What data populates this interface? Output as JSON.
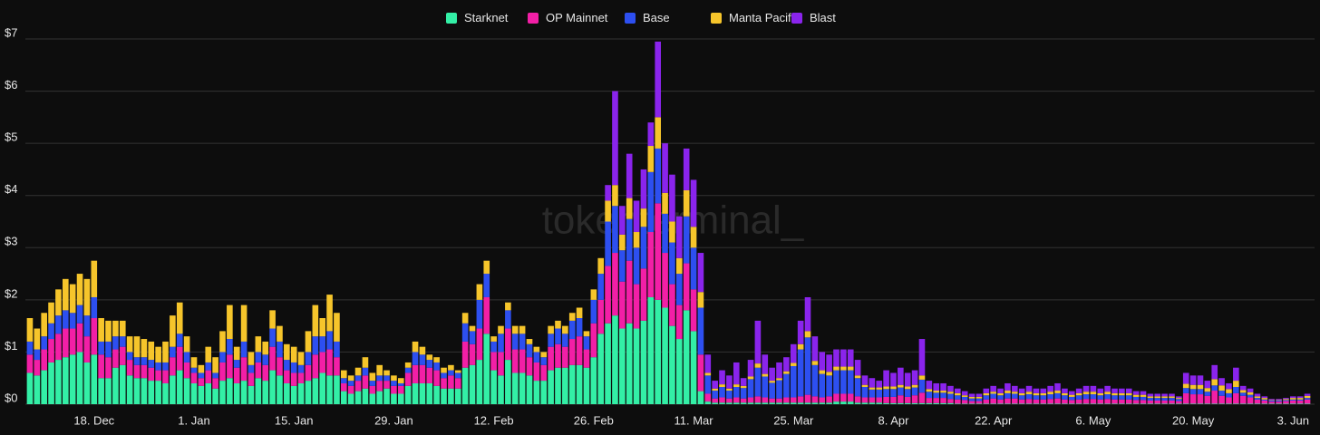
{
  "chart_data": {
    "type": "stacked_bar",
    "watermark": "tokenterminal_",
    "categories": [
      null,
      null,
      null,
      null,
      null,
      null,
      null,
      null,
      null,
      "18. Dec",
      null,
      null,
      null,
      null,
      null,
      null,
      null,
      null,
      null,
      null,
      null,
      null,
      null,
      "1. Jan",
      null,
      null,
      null,
      null,
      null,
      null,
      null,
      null,
      null,
      null,
      null,
      null,
      null,
      "15. Jan",
      null,
      null,
      null,
      null,
      null,
      null,
      null,
      null,
      null,
      null,
      null,
      null,
      null,
      "29. Jan",
      null,
      null,
      null,
      null,
      null,
      null,
      null,
      null,
      null,
      null,
      null,
      null,
      null,
      "12. Feb",
      null,
      null,
      null,
      null,
      null,
      null,
      null,
      null,
      null,
      null,
      null,
      null,
      null,
      "26. Feb",
      null,
      null,
      null,
      null,
      null,
      null,
      null,
      null,
      null,
      null,
      null,
      null,
      null,
      "11. Mar",
      null,
      null,
      null,
      null,
      null,
      null,
      null,
      null,
      null,
      null,
      null,
      null,
      null,
      "25. Mar",
      null,
      null,
      null,
      null,
      null,
      null,
      null,
      null,
      null,
      null,
      null,
      null,
      null,
      "8. Apr",
      null,
      null,
      null,
      null,
      null,
      null,
      null,
      null,
      null,
      null,
      null,
      null,
      null,
      "22. Apr",
      null,
      null,
      null,
      null,
      null,
      null,
      null,
      null,
      null,
      null,
      null,
      null,
      null,
      "6. May",
      null,
      null,
      null,
      null,
      null,
      null,
      null,
      null,
      null,
      null,
      null,
      null,
      null,
      "20. May",
      null,
      null,
      null,
      null,
      null,
      null,
      null,
      null,
      null,
      null,
      null,
      null,
      null,
      "3. Jun",
      null,
      null
    ],
    "series": [
      {
        "name": "Starknet",
        "color": "#33efa6",
        "values": [
          0.6,
          0.55,
          0.65,
          0.8,
          0.85,
          0.9,
          0.95,
          1.0,
          0.8,
          0.95,
          0.5,
          0.5,
          0.7,
          0.75,
          0.55,
          0.5,
          0.5,
          0.45,
          0.45,
          0.4,
          0.55,
          0.65,
          0.5,
          0.4,
          0.35,
          0.4,
          0.3,
          0.45,
          0.5,
          0.4,
          0.45,
          0.35,
          0.5,
          0.45,
          0.65,
          0.55,
          0.4,
          0.35,
          0.4,
          0.45,
          0.5,
          0.6,
          0.55,
          0.55,
          0.25,
          0.2,
          0.25,
          0.3,
          0.2,
          0.25,
          0.3,
          0.2,
          0.2,
          0.35,
          0.4,
          0.4,
          0.4,
          0.35,
          0.3,
          0.3,
          0.3,
          0.7,
          0.75,
          0.85,
          1.35,
          0.65,
          0.55,
          0.85,
          0.6,
          0.6,
          0.55,
          0.45,
          0.45,
          0.65,
          0.7,
          0.7,
          0.75,
          0.75,
          0.7,
          0.9,
          1.35,
          1.55,
          1.7,
          1.45,
          1.55,
          1.45,
          1.6,
          2.05,
          2.0,
          1.85,
          1.5,
          1.25,
          1.8,
          1.4,
          0.25,
          0.05,
          0.03,
          0.03,
          0.03,
          0.03,
          0.03,
          0.03,
          0.03,
          0.03,
          0.03,
          0.03,
          0.03,
          0.03,
          0.03,
          0.03,
          0.03,
          0.03,
          0.03,
          0.05,
          0.05,
          0.05,
          0.03,
          0.03,
          0.03,
          0.03,
          0.02,
          0.02,
          0.02,
          0.02,
          0.02,
          0.02,
          0.02,
          0.02,
          0.02,
          0.02,
          0.01,
          0.01,
          0.01,
          0.01,
          0.01,
          0.01,
          0.01,
          0.01,
          0.01,
          0.01,
          0.01,
          0.01,
          0.01,
          0.01,
          0.01,
          0.01,
          0.01,
          0.01,
          0.01,
          0.01,
          0.01,
          0.01,
          0.01,
          0.01,
          0.01,
          0.01,
          0.01,
          0.01,
          0.01,
          0.01,
          0.01,
          0.01,
          0.01,
          0.01,
          0.01,
          0.01,
          0.01,
          0.01,
          0.01,
          0.01,
          0.01,
          0.01,
          0.01,
          0.01,
          0.01,
          0.01,
          0.01,
          0.01,
          0.01,
          0.01
        ]
      },
      {
        "name": "OP Mainnet",
        "color": "#f21fa6",
        "values": [
          0.35,
          0.3,
          0.4,
          0.45,
          0.5,
          0.55,
          0.5,
          0.55,
          0.5,
          0.7,
          0.45,
          0.4,
          0.35,
          0.35,
          0.3,
          0.25,
          0.25,
          0.25,
          0.2,
          0.25,
          0.35,
          0.45,
          0.3,
          0.2,
          0.15,
          0.25,
          0.2,
          0.35,
          0.45,
          0.3,
          0.45,
          0.25,
          0.3,
          0.3,
          0.45,
          0.35,
          0.25,
          0.25,
          0.2,
          0.3,
          0.45,
          0.4,
          0.5,
          0.35,
          0.15,
          0.15,
          0.2,
          0.25,
          0.15,
          0.2,
          0.15,
          0.15,
          0.15,
          0.25,
          0.35,
          0.35,
          0.3,
          0.3,
          0.2,
          0.25,
          0.2,
          0.5,
          0.4,
          0.6,
          0.7,
          0.35,
          0.45,
          0.6,
          0.45,
          0.45,
          0.35,
          0.35,
          0.3,
          0.45,
          0.45,
          0.4,
          0.5,
          0.55,
          0.35,
          0.65,
          0.65,
          1.1,
          1.2,
          0.9,
          1.2,
          0.85,
          1.0,
          1.25,
          1.85,
          1.05,
          0.8,
          0.65,
          0.9,
          0.8,
          0.7,
          0.15,
          0.08,
          0.1,
          0.08,
          0.1,
          0.08,
          0.1,
          0.12,
          0.1,
          0.08,
          0.08,
          0.1,
          0.1,
          0.12,
          0.15,
          0.12,
          0.1,
          0.12,
          0.15,
          0.15,
          0.15,
          0.12,
          0.1,
          0.1,
          0.1,
          0.12,
          0.12,
          0.15,
          0.12,
          0.15,
          0.2,
          0.1,
          0.1,
          0.1,
          0.08,
          0.08,
          0.07,
          0.05,
          0.05,
          0.08,
          0.1,
          0.08,
          0.1,
          0.1,
          0.08,
          0.09,
          0.08,
          0.08,
          0.09,
          0.1,
          0.08,
          0.07,
          0.08,
          0.09,
          0.09,
          0.08,
          0.09,
          0.08,
          0.08,
          0.08,
          0.07,
          0.07,
          0.06,
          0.06,
          0.06,
          0.06,
          0.05,
          0.2,
          0.18,
          0.18,
          0.15,
          0.25,
          0.15,
          0.12,
          0.2,
          0.15,
          0.12,
          0.08,
          0.06,
          0.04,
          0.04,
          0.05,
          0.06,
          0.06,
          0.08
        ]
      },
      {
        "name": "Base",
        "color": "#2d4ff0",
        "values": [
          0.25,
          0.2,
          0.25,
          0.3,
          0.35,
          0.35,
          0.3,
          0.35,
          0.4,
          0.4,
          0.25,
          0.3,
          0.25,
          0.2,
          0.15,
          0.15,
          0.15,
          0.15,
          0.15,
          0.15,
          0.2,
          0.25,
          0.2,
          0.1,
          0.1,
          0.15,
          0.1,
          0.2,
          0.3,
          0.15,
          0.3,
          0.15,
          0.2,
          0.2,
          0.35,
          0.3,
          0.2,
          0.2,
          0.15,
          0.25,
          0.35,
          0.3,
          0.35,
          0.3,
          0.1,
          0.1,
          0.1,
          0.15,
          0.1,
          0.1,
          0.1,
          0.1,
          0.05,
          0.1,
          0.25,
          0.2,
          0.15,
          0.15,
          0.1,
          0.1,
          0.1,
          0.35,
          0.25,
          0.55,
          0.45,
          0.2,
          0.35,
          0.35,
          0.3,
          0.3,
          0.25,
          0.2,
          0.15,
          0.25,
          0.3,
          0.25,
          0.35,
          0.35,
          0.25,
          0.45,
          0.5,
          0.85,
          0.9,
          0.6,
          0.8,
          0.7,
          0.8,
          1.15,
          1.05,
          0.75,
          0.8,
          0.6,
          0.9,
          0.8,
          0.9,
          0.35,
          0.15,
          0.2,
          0.15,
          0.2,
          0.2,
          0.35,
          0.55,
          0.4,
          0.3,
          0.35,
          0.45,
          0.6,
          0.9,
          1.1,
          0.6,
          0.45,
          0.4,
          0.45,
          0.45,
          0.45,
          0.35,
          0.2,
          0.15,
          0.15,
          0.15,
          0.15,
          0.15,
          0.15,
          0.15,
          0.25,
          0.12,
          0.1,
          0.1,
          0.1,
          0.08,
          0.06,
          0.05,
          0.05,
          0.08,
          0.09,
          0.08,
          0.1,
          0.09,
          0.08,
          0.09,
          0.08,
          0.08,
          0.09,
          0.1,
          0.08,
          0.06,
          0.08,
          0.09,
          0.09,
          0.08,
          0.09,
          0.08,
          0.08,
          0.08,
          0.06,
          0.06,
          0.05,
          0.05,
          0.05,
          0.05,
          0.04,
          0.1,
          0.1,
          0.1,
          0.08,
          0.1,
          0.1,
          0.08,
          0.12,
          0.06,
          0.05,
          0.03,
          0.02,
          0.02,
          0.02,
          0.02,
          0.02,
          0.02,
          0.03
        ]
      },
      {
        "name": "Manta Pacific",
        "color": "#f6c52b",
        "values": [
          0.45,
          0.4,
          0.45,
          0.4,
          0.5,
          0.6,
          0.55,
          0.6,
          0.7,
          0.7,
          0.45,
          0.4,
          0.3,
          0.3,
          0.3,
          0.4,
          0.35,
          0.35,
          0.3,
          0.4,
          0.6,
          0.6,
          0.3,
          0.2,
          0.15,
          0.3,
          0.3,
          0.4,
          0.65,
          0.25,
          0.7,
          0.25,
          0.3,
          0.25,
          0.35,
          0.3,
          0.3,
          0.3,
          0.25,
          0.4,
          0.6,
          0.35,
          0.7,
          0.55,
          0.15,
          0.1,
          0.15,
          0.2,
          0.15,
          0.2,
          0.1,
          0.1,
          0.1,
          0.1,
          0.2,
          0.15,
          0.1,
          0.1,
          0.1,
          0.1,
          0.05,
          0.2,
          0.1,
          0.3,
          0.25,
          0.1,
          0.15,
          0.15,
          0.15,
          0.15,
          0.1,
          0.1,
          0.1,
          0.15,
          0.15,
          0.15,
          0.15,
          0.2,
          0.1,
          0.2,
          0.3,
          0.4,
          0.4,
          0.3,
          0.4,
          0.3,
          0.35,
          0.5,
          0.6,
          0.4,
          0.4,
          0.3,
          0.5,
          0.4,
          0.3,
          0.05,
          0.04,
          0.05,
          0.04,
          0.05,
          0.04,
          0.05,
          0.08,
          0.05,
          0.04,
          0.04,
          0.05,
          0.06,
          0.1,
          0.12,
          0.08,
          0.07,
          0.07,
          0.07,
          0.07,
          0.07,
          0.05,
          0.04,
          0.04,
          0.04,
          0.05,
          0.05,
          0.05,
          0.05,
          0.05,
          0.08,
          0.05,
          0.04,
          0.04,
          0.04,
          0.04,
          0.03,
          0.03,
          0.03,
          0.04,
          0.04,
          0.04,
          0.05,
          0.04,
          0.04,
          0.05,
          0.04,
          0.04,
          0.05,
          0.05,
          0.04,
          0.04,
          0.04,
          0.05,
          0.05,
          0.04,
          0.05,
          0.04,
          0.04,
          0.04,
          0.04,
          0.04,
          0.03,
          0.03,
          0.03,
          0.03,
          0.02,
          0.08,
          0.08,
          0.08,
          0.07,
          0.12,
          0.1,
          0.08,
          0.12,
          0.05,
          0.05,
          0.03,
          0.03,
          0.01,
          0.01,
          0.02,
          0.03,
          0.03,
          0.04
        ]
      },
      {
        "name": "Blast",
        "color": "#8a24ec",
        "values": [
          0,
          0,
          0,
          0,
          0,
          0,
          0,
          0,
          0,
          0,
          0,
          0,
          0,
          0,
          0,
          0,
          0,
          0,
          0,
          0,
          0,
          0,
          0,
          0,
          0,
          0,
          0,
          0,
          0,
          0,
          0,
          0,
          0,
          0,
          0,
          0,
          0,
          0,
          0,
          0,
          0,
          0,
          0,
          0,
          0,
          0,
          0,
          0,
          0,
          0,
          0,
          0,
          0,
          0,
          0,
          0,
          0,
          0,
          0,
          0,
          0,
          0,
          0,
          0,
          0,
          0,
          0,
          0,
          0,
          0,
          0,
          0,
          0,
          0,
          0,
          0,
          0,
          0,
          0,
          0,
          0,
          0.3,
          1.8,
          0.55,
          0.85,
          0.6,
          0.75,
          0.45,
          1.45,
          0.95,
          0.9,
          0.8,
          0.8,
          0.9,
          0.75,
          0.35,
          0.15,
          0.27,
          0.25,
          0.42,
          0.15,
          0.32,
          0.82,
          0.37,
          0.25,
          0.3,
          0.27,
          0.36,
          0.45,
          0.65,
          0.47,
          0.35,
          0.33,
          0.33,
          0.33,
          0.33,
          0.3,
          0.18,
          0.18,
          0.13,
          0.31,
          0.26,
          0.33,
          0.26,
          0.28,
          0.7,
          0.16,
          0.14,
          0.14,
          0.11,
          0.09,
          0.08,
          0.06,
          0.06,
          0.09,
          0.11,
          0.09,
          0.14,
          0.11,
          0.09,
          0.11,
          0.09,
          0.09,
          0.11,
          0.14,
          0.09,
          0.07,
          0.09,
          0.11,
          0.11,
          0.09,
          0.11,
          0.09,
          0.09,
          0.09,
          0.07,
          0.07,
          0.05,
          0.05,
          0.05,
          0.05,
          0.03,
          0.21,
          0.18,
          0.18,
          0.14,
          0.27,
          0.14,
          0.11,
          0.25,
          0.08,
          0.07,
          0.05,
          0.03,
          0.02,
          0.02,
          0.02,
          0.03,
          0.03,
          0.04
        ]
      }
    ],
    "ylim": [
      0,
      7
    ],
    "yticks": [
      {
        "value": 0,
        "label": "$0"
      },
      {
        "value": 1,
        "label": "$1"
      },
      {
        "value": 2,
        "label": "$2"
      },
      {
        "value": 3,
        "label": "$3"
      },
      {
        "value": 4,
        "label": "$4"
      },
      {
        "value": 5,
        "label": "$5"
      },
      {
        "value": 6,
        "label": "$6"
      },
      {
        "value": 7,
        "label": "$7"
      }
    ],
    "grid": true
  }
}
